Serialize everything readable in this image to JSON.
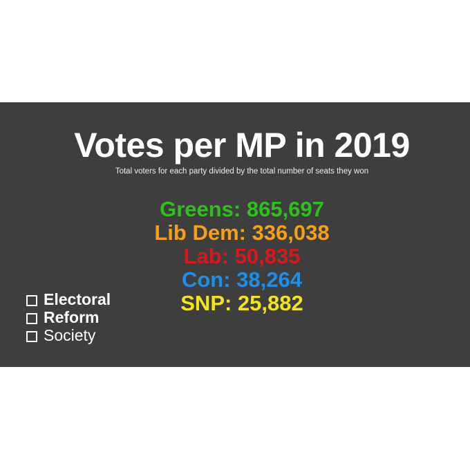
{
  "header": {
    "title": "Votes per MP in 2019",
    "subtitle": "Total voters for each party divided by the total number of seats they won"
  },
  "parties": [
    {
      "text": "Greens: 865,697",
      "color": "#2fbf1f"
    },
    {
      "text": "Lib Dem: 336,038",
      "color": "#f5a01a"
    },
    {
      "text": "Lab: 50,835",
      "color": "#d7191c"
    },
    {
      "text": "Con: 38,264",
      "color": "#1f8ee8"
    },
    {
      "text": "SNP: 25,882",
      "color": "#f2e51d"
    }
  ],
  "logo": {
    "lines": [
      "Electoral",
      "Reform",
      "Society"
    ]
  }
}
